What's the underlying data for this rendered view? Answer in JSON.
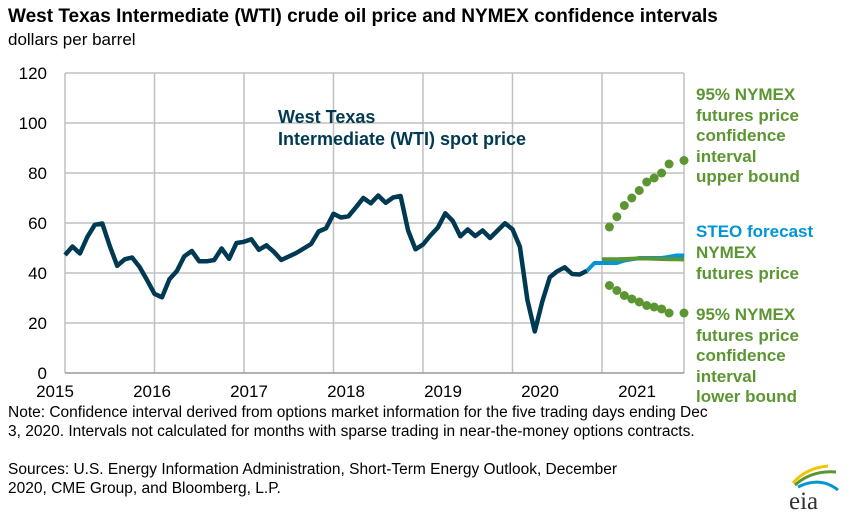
{
  "title": "West Texas Intermediate (WTI) crude oil price and NYMEX confidence intervals",
  "subtitle": "dollars per barrel",
  "colors": {
    "wti": "#003a52",
    "steo": "#0096d6",
    "nymex": "#5b9632",
    "grid": "#c0c0c0"
  },
  "chart_data": {
    "type": "line",
    "title": "West Texas Intermediate (WTI) crude oil price and NYMEX confidence intervals",
    "ylabel": "dollars per barrel",
    "ylim": [
      0,
      120
    ],
    "yticks": [
      "0",
      "20",
      "40",
      "60",
      "80",
      "100",
      "120"
    ],
    "xlim": [
      "2015-01",
      "2021-12"
    ],
    "xticks": [
      "2015",
      "2016",
      "2017",
      "2018",
      "2019",
      "2020",
      "2021"
    ],
    "grid": true,
    "series": [
      {
        "name": "West Texas Intermediate (WTI) spot price",
        "style": "line",
        "color": "#003a52",
        "start": "2015-01",
        "values": [
          47.2,
          50.6,
          47.8,
          54.5,
          59.3,
          59.8,
          50.9,
          42.9,
          45.5,
          46.2,
          42.4,
          37.2,
          31.7,
          30.3,
          37.5,
          40.8,
          46.7,
          48.8,
          44.7,
          44.7,
          45.2,
          49.8,
          45.7,
          52.0,
          52.5,
          53.5,
          49.3,
          51.1,
          48.5,
          45.2,
          46.6,
          48.0,
          49.8,
          51.6,
          56.6,
          57.9,
          63.7,
          62.2,
          62.7,
          66.3,
          70.0,
          67.9,
          71.0,
          68.1,
          70.2,
          70.8,
          57.0,
          49.5,
          51.4,
          55.0,
          58.2,
          63.9,
          60.8,
          54.7,
          57.4,
          54.8,
          57.0,
          54.0,
          57.0,
          59.9,
          57.5,
          50.5,
          29.2,
          16.6,
          28.6,
          38.3,
          40.7,
          42.3,
          39.6,
          39.4,
          40.9
        ]
      },
      {
        "name": "STEO forecast",
        "style": "line",
        "color": "#0096d6",
        "start": "2020-11",
        "values": [
          40.9,
          44.0,
          44.0,
          44.0,
          44.0,
          45.0,
          45.5,
          46.0,
          46.0,
          46.0,
          46.0,
          46.5,
          47.0,
          47.0
        ]
      },
      {
        "name": "NYMEX futures price",
        "style": "line",
        "color": "#5b9632",
        "start": "2021-01",
        "values": [
          45.5,
          45.5,
          45.5,
          45.6,
          45.7,
          45.8,
          45.8,
          45.7,
          45.6,
          45.5,
          45.5,
          45.4
        ]
      },
      {
        "name": "95% NYMEX futures price confidence interval upper bound",
        "style": "dots",
        "color": "#5b9632",
        "points": [
          [
            "2021-02",
            58.4
          ],
          [
            "2021-03",
            62.5
          ],
          [
            "2021-04",
            67
          ],
          [
            "2021-05",
            70
          ],
          [
            "2021-06",
            73
          ],
          [
            "2021-07",
            76.4
          ],
          [
            "2021-08",
            78
          ],
          [
            "2021-09",
            80
          ],
          [
            "2021-10",
            83.6
          ],
          [
            "2021-12",
            85
          ]
        ]
      },
      {
        "name": "95% NYMEX futures price confidence interval lower bound",
        "style": "dots",
        "color": "#5b9632",
        "points": [
          [
            "2021-02",
            35
          ],
          [
            "2021-03",
            33
          ],
          [
            "2021-04",
            31
          ],
          [
            "2021-05",
            29.6
          ],
          [
            "2021-06",
            28.4
          ],
          [
            "2021-07",
            27
          ],
          [
            "2021-08",
            26.4
          ],
          [
            "2021-09",
            25.6
          ],
          [
            "2021-10",
            24
          ],
          [
            "2021-12",
            24
          ]
        ]
      }
    ]
  },
  "labels": {
    "wti": "West Texas\nIntermediate (WTI) spot price",
    "upper": "95% NYMEX\nfutures price\nconfidence\ninterval\nupper bound",
    "steo": "STEO forecast",
    "nymex": "NYMEX\nfutures price",
    "lower": "95% NYMEX\nfutures price\nconfidence\ninterval\nlower bound"
  },
  "note": "Note: Confidence interval derived from options market information for the five trading days ending Dec\n3, 2020. Intervals not calculated for months with sparse trading in near-the-money options contracts.",
  "sources": "Sources: U.S. Energy Information Administration, Short-Term Energy Outlook, December\n2020, CME Group, and Bloomberg, L.P.",
  "logo": "eia"
}
